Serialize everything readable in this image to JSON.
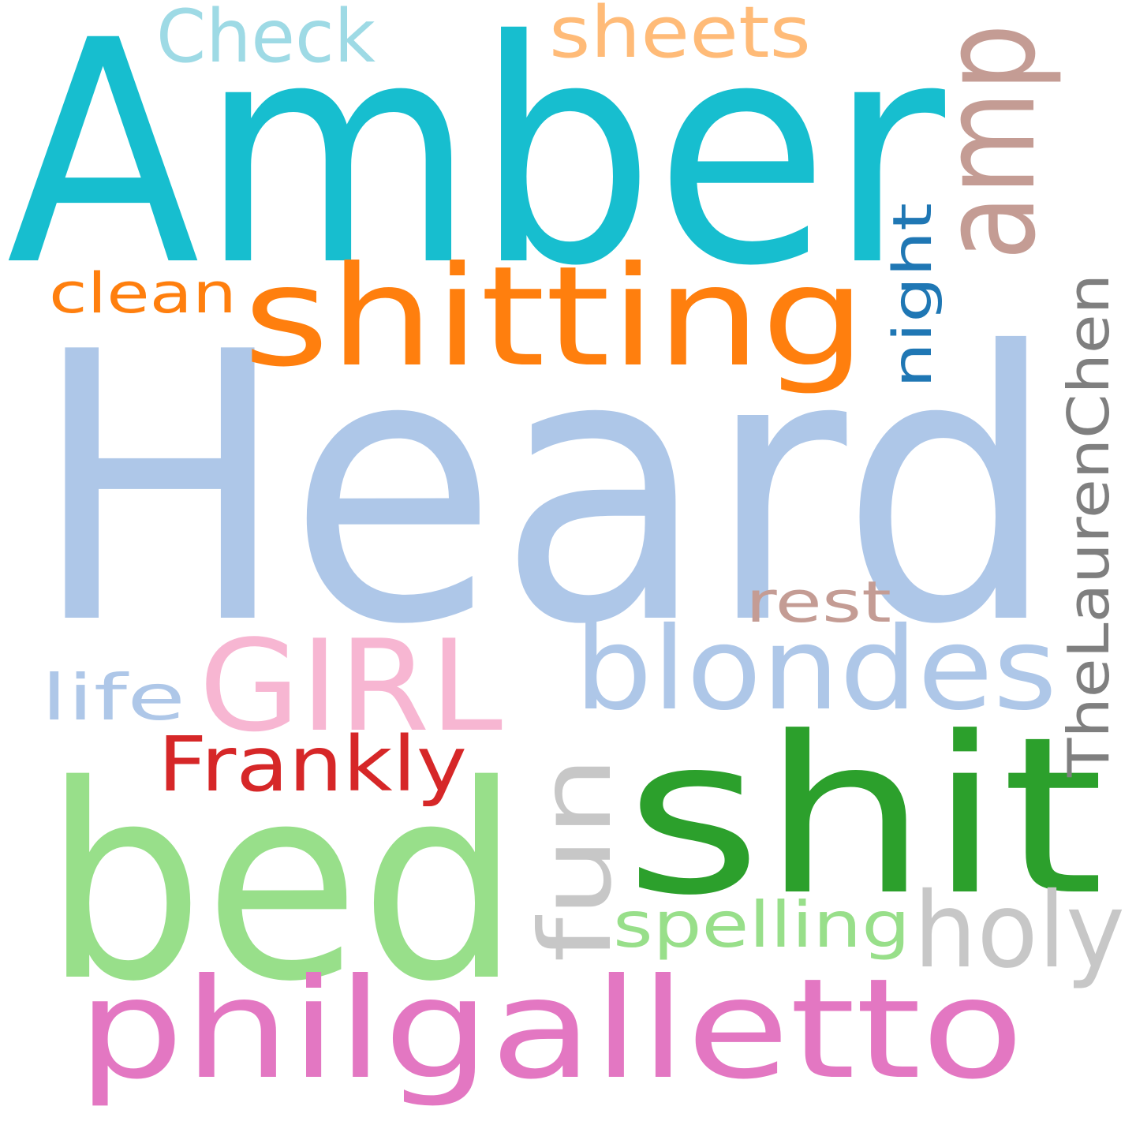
{
  "background": "#ffffff",
  "words": [
    {
      "id": "amber",
      "text": "Amber",
      "color": "#17becf",
      "orientation": "horizontal"
    },
    {
      "id": "heard",
      "text": "Heard",
      "color": "#aec7e8",
      "orientation": "horizontal"
    },
    {
      "id": "bed",
      "text": "bed",
      "color": "#98df8a",
      "orientation": "horizontal"
    },
    {
      "id": "shit",
      "text": "shit",
      "color": "#2ca02c",
      "orientation": "horizontal"
    },
    {
      "id": "shitting",
      "text": "shitting",
      "color": "#ff7f0e",
      "orientation": "horizontal"
    },
    {
      "id": "philgalletto",
      "text": "philgalletto",
      "color": "#e377c2",
      "orientation": "horizontal"
    },
    {
      "id": "blondes",
      "text": "blondes",
      "color": "#aec7e8",
      "orientation": "horizontal"
    },
    {
      "id": "girl",
      "text": "GIRL",
      "color": "#f7b6d2",
      "orientation": "horizontal"
    },
    {
      "id": "amp",
      "text": "amp",
      "color": "#c49c94",
      "orientation": "vertical"
    },
    {
      "id": "thelaurenchen",
      "text": "TheLaurenChen",
      "color": "#7f7f7f",
      "orientation": "vertical"
    },
    {
      "id": "fun",
      "text": "fun",
      "color": "#c7c7c7",
      "orientation": "vertical"
    },
    {
      "id": "holy",
      "text": "holy",
      "color": "#c7c7c7",
      "orientation": "horizontal"
    },
    {
      "id": "frankly",
      "text": "Frankly",
      "color": "#d62728",
      "orientation": "horizontal"
    },
    {
      "id": "spelling",
      "text": "spelling",
      "color": "#98df8a",
      "orientation": "horizontal"
    },
    {
      "id": "night",
      "text": "night",
      "color": "#1f77b4",
      "orientation": "vertical"
    },
    {
      "id": "check",
      "text": "Check",
      "color": "#9edae5",
      "orientation": "horizontal"
    },
    {
      "id": "sheets",
      "text": "sheets",
      "color": "#ffbb78",
      "orientation": "horizontal"
    },
    {
      "id": "clean",
      "text": "clean",
      "color": "#ff7f0e",
      "orientation": "horizontal"
    },
    {
      "id": "rest",
      "text": "rest",
      "color": "#c49c94",
      "orientation": "horizontal"
    },
    {
      "id": "life",
      "text": "life",
      "color": "#aec7e8",
      "orientation": "horizontal"
    }
  ]
}
